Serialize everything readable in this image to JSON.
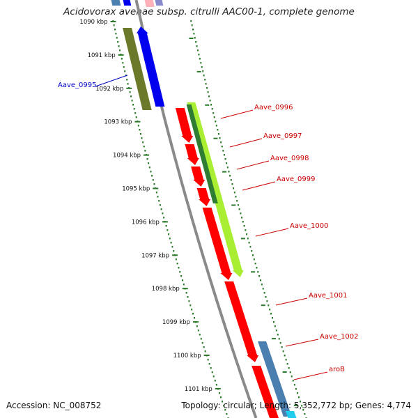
{
  "title": "Acidovorax avenae subsp. citrulli AAC00-1, complete genome",
  "accession": "Accession: NC_008752",
  "topology": "Topology: circular; Length: 5,352,772 bp; Genes: 4,774",
  "ticks": [
    {
      "label": "1090 kbp",
      "kbp": 1090
    },
    {
      "label": "1091 kbp",
      "kbp": 1091
    },
    {
      "label": "1092 kbp",
      "kbp": 1092
    },
    {
      "label": "1093 kbp",
      "kbp": 1093
    },
    {
      "label": "1094 kbp",
      "kbp": 1094
    },
    {
      "label": "1095 kbp",
      "kbp": 1095
    },
    {
      "label": "1096 kbp",
      "kbp": 1096
    },
    {
      "label": "1097 kbp",
      "kbp": 1097
    },
    {
      "label": "1098 kbp",
      "kbp": 1098
    },
    {
      "label": "1099 kbp",
      "kbp": 1099
    },
    {
      "label": "1100 kbp",
      "kbp": 1100
    },
    {
      "label": "1101 kbp",
      "kbp": 1101
    }
  ],
  "genes": [
    {
      "label": "Aave_0995",
      "color": "#0000cc"
    },
    {
      "label": "Aave_0996",
      "color": "#cc0000"
    },
    {
      "label": "Aave_0997",
      "color": "#cc0000"
    },
    {
      "label": "Aave_0998",
      "color": "#cc0000"
    },
    {
      "label": "Aave_0999",
      "color": "#cc0000"
    },
    {
      "label": "Aave_1000",
      "color": "#cc0000"
    },
    {
      "label": "Aave_1001",
      "color": "#cc0000"
    },
    {
      "label": "Aave_1002",
      "color": "#cc0000"
    },
    {
      "label": "aroB",
      "color": "#cc0000"
    }
  ],
  "colors": {
    "backbone": "#8a8a8a",
    "tick": "#2a7a2a",
    "cds_reverse": "#0000ee",
    "cds_forward": "#ff0000",
    "olive": "#6b7a2a",
    "lime": "#aaee33",
    "dark_green": "#2e7d32",
    "steel_blue": "#4a7fb0",
    "cyan": "#22ccee",
    "pink": "#ffb0b8"
  }
}
